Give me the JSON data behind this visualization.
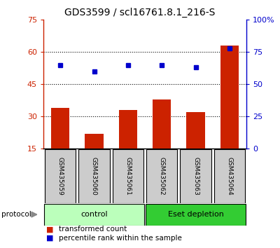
{
  "title": "GDS3599 / scl16761.8.1_216-S",
  "samples": [
    "GSM435059",
    "GSM435060",
    "GSM435061",
    "GSM435062",
    "GSM435063",
    "GSM435064"
  ],
  "bar_values": [
    34,
    22,
    33,
    38,
    32,
    63
  ],
  "dot_values": [
    65,
    60,
    65,
    65,
    63,
    78
  ],
  "bar_color": "#cc2200",
  "dot_color": "#0000cc",
  "ylim_left": [
    15,
    75
  ],
  "ylim_right": [
    0,
    100
  ],
  "yticks_left": [
    15,
    30,
    45,
    60,
    75
  ],
  "yticks_right": [
    0,
    25,
    50,
    75,
    100
  ],
  "ytick_labels_right": [
    "0",
    "25",
    "50",
    "75",
    "100%"
  ],
  "gridlines_at": [
    30,
    45,
    60
  ],
  "groups": [
    {
      "label": "control",
      "indices": [
        0,
        1,
        2
      ],
      "color": "#bbffbb"
    },
    {
      "label": "Eset depletion",
      "indices": [
        3,
        4,
        5
      ],
      "color": "#33cc33"
    }
  ],
  "protocol_label": "protocol",
  "legend_bar_label": "transformed count",
  "legend_dot_label": "percentile rank within the sample",
  "background_color": "#ffffff",
  "sample_box_color": "#cccccc",
  "title_fontsize": 10,
  "tick_fontsize": 8,
  "legend_fontsize": 7.5,
  "bar_width": 0.55
}
